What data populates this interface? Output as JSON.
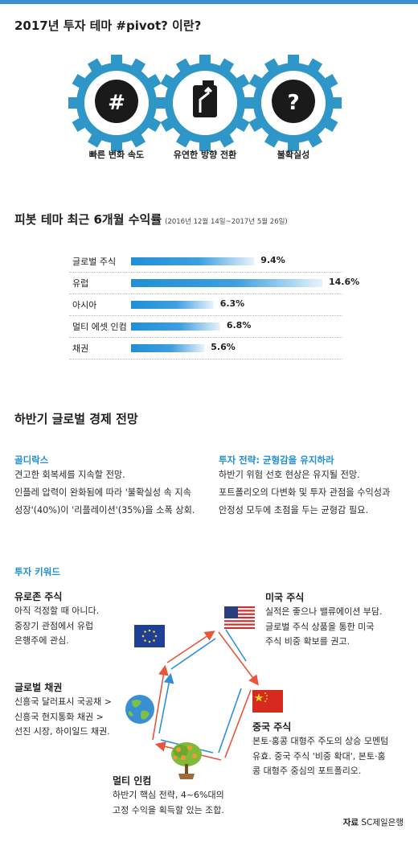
{
  "header": {
    "title": "2017년 투자 테마 #pivot? 이란?"
  },
  "gears": [
    {
      "symbol": "#",
      "label": "빠른 변화 속도",
      "icon": "hash-icon"
    },
    {
      "symbol": "",
      "label": "유연한 방향 전환",
      "icon": "turn-sign-icon"
    },
    {
      "symbol": "?",
      "label": "불확실성",
      "icon": "question-icon"
    }
  ],
  "chart_section": {
    "title": "피봇 테마 최근 6개월 수익률",
    "period": "(2016년 12월 14일~2017년 5월 26일)"
  },
  "chart_data": {
    "type": "bar",
    "orientation": "horizontal",
    "title": "피봇 테마 최근 6개월 수익률",
    "categories": [
      "글로벌 주식",
      "유럽",
      "아시아",
      "멀티 에셋 인컴",
      "채권"
    ],
    "values": [
      9.4,
      14.6,
      6.3,
      6.8,
      5.6
    ],
    "labels": [
      "9.4%",
      "14.6%",
      "6.3%",
      "6.8%",
      "5.6%"
    ],
    "unit": "%",
    "xlim": [
      0,
      14.6
    ],
    "bar_color": "#1f8fd8",
    "gradient": "solid-to-fade"
  },
  "outlook": {
    "title": "하반기 글로벌 경제 전망",
    "left": {
      "subtitle": "골디락스",
      "lines": [
        "견고한 회복세를 지속할 전망.",
        "인플레 압력이 완화됨에 따라 '불확실성 속 지속",
        "성장'(40%)이 '리플레이션'(35%)을 소폭 상회."
      ]
    },
    "right": {
      "subtitle": "투자 전략: 균형감을 유지하라",
      "lines": [
        "하반기 위험 선호 현상은 유지될 전망.",
        "포트폴리오의 다변화 및 투자 관점을 수익성과",
        "안정성 모두에 초점을 두는 균형감 필요."
      ]
    }
  },
  "keywords": {
    "title": "투자 키워드",
    "europe": {
      "title": "유로존 주식",
      "lines": [
        "아직 걱정할 때 아니다.",
        "중장기 관점에서 유럽",
        "은행주에 관심."
      ],
      "icon": "eu-flag-icon"
    },
    "us": {
      "title": "미국 주식",
      "lines": [
        "실적은 좋으나 밸류에이션 부담.",
        "글로벌 주식 상품을 통한 미국",
        "주식 비중 확보를 권고."
      ],
      "icon": "us-flag-icon"
    },
    "bonds": {
      "title": "글로벌 채권",
      "lines": [
        "신흥국 달러표시 국공채 >",
        "신흥국 현지통화 채권 >",
        "선진 시장, 하이일드 채권."
      ],
      "icon": "globe-icon"
    },
    "china": {
      "title": "중국 주식",
      "lines": [
        "본토·홍콩 대형주 주도의 상승 모멘텀",
        "유효. 중국 주식 '비중 확대', 본토·홍",
        "콩 대형주 중심의 포트폴리오."
      ],
      "icon": "china-flag-icon"
    },
    "multi": {
      "title": "멀티 인컴",
      "lines": [
        "하반기 핵심 전략, 4~6%대의",
        "고정 수익을 획득할 있는 조합."
      ],
      "icon": "money-tree-icon"
    }
  },
  "source": {
    "prefix": "자료",
    "name": "SC제일은행"
  },
  "colors": {
    "accent": "#1f8fd8",
    "gear": "#2f97c8",
    "pentagon_red": "#e8553a",
    "pentagon_blue": "#2f8fd8"
  }
}
